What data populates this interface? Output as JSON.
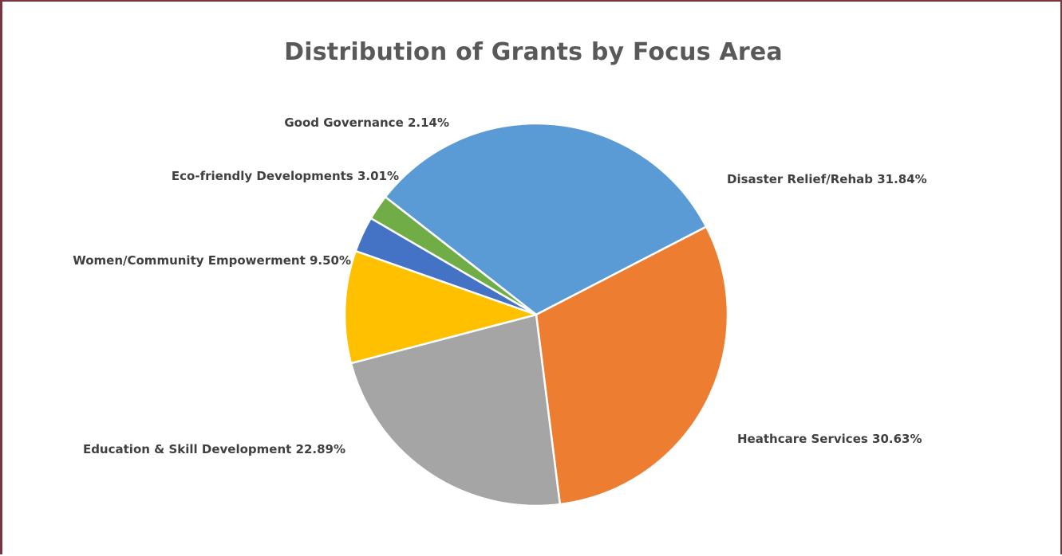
{
  "chart_data": {
    "type": "pie",
    "title": "Distribution of Grants by Focus Area",
    "slices": [
      {
        "label": "Disaster Relief/Rehab",
        "value": 31.84,
        "display": "Disaster Relief/Rehab 31.84%",
        "color": "#5b9bd5"
      },
      {
        "label": "Heathcare Services",
        "value": 30.63,
        "display": "Heathcare Services 30.63%",
        "color": "#ed7d31"
      },
      {
        "label": "Education & Skill Development",
        "value": 22.89,
        "display": "Education & Skill Development 22.89%",
        "color": "#a5a5a5"
      },
      {
        "label": "Women/Community Empowerment",
        "value": 9.5,
        "display": "Women/Community Empowerment 9.50%",
        "color": "#ffc000"
      },
      {
        "label": "Eco-friendly Developments",
        "value": 3.01,
        "display": "Eco-friendly Developments 3.01%",
        "color": "#4472c4"
      },
      {
        "label": "Good Governance",
        "value": 2.14,
        "display": "Good Governance 2.14%",
        "color": "#70ad47"
      }
    ]
  }
}
